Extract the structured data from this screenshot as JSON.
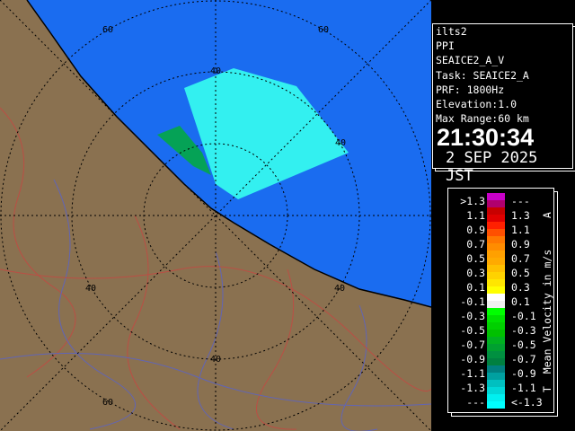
{
  "info": {
    "station": "ilts2",
    "mode": "PPI",
    "product": "SEAICE2_A_V",
    "task": "Task: SEAICE2_A",
    "prf": "PRF: 1800Hz",
    "elevation": "Elevation:1.0",
    "max_range": "Max Range:60 km",
    "time": "21:30:34",
    "date": "2 SEP 2025 JST"
  },
  "map": {
    "range_labels": [
      "60",
      "60",
      "40",
      "40",
      "40",
      "40",
      "40",
      "60"
    ],
    "colors": {
      "sea": "#1a6cf0",
      "land": "#8a7150",
      "echo": "#33f0f0",
      "ring": "#000000"
    }
  },
  "legend": {
    "title": "Mean Velocity in m/s",
    "top_mark": "A",
    "bottom_mark": "T",
    "rows": [
      {
        "low": ">1.3",
        "high": "---",
        "c1": "#c800c8",
        "c2": "#b0006e"
      },
      {
        "low": "1.1",
        "high": "1.3",
        "c1": "#c80000",
        "c2": "#e00000"
      },
      {
        "low": "0.9",
        "high": "1.1",
        "c1": "#ff2000",
        "c2": "#ff5000"
      },
      {
        "low": "0.7",
        "high": "0.9",
        "c1": "#ff7800",
        "c2": "#ff8c00"
      },
      {
        "low": "0.5",
        "high": "0.7",
        "c1": "#ffa000",
        "c2": "#ffaa00"
      },
      {
        "low": "0.3",
        "high": "0.5",
        "c1": "#ffc000",
        "c2": "#ffd200"
      },
      {
        "low": "0.1",
        "high": "0.3",
        "c1": "#ffe600",
        "c2": "#ffff00"
      },
      {
        "low": "-0.1",
        "high": "0.1",
        "c1": "#ffffff",
        "c2": "#f0f0f0"
      },
      {
        "low": "-0.3",
        "high": "-0.1",
        "c1": "#00ff00",
        "c2": "#00e000"
      },
      {
        "low": "-0.5",
        "high": "-0.3",
        "c1": "#00d000",
        "c2": "#00c000"
      },
      {
        "low": "-0.7",
        "high": "-0.5",
        "c1": "#00b020",
        "c2": "#00a030"
      },
      {
        "low": "-0.9",
        "high": "-0.7",
        "c1": "#009040",
        "c2": "#008040"
      },
      {
        "low": "-1.1",
        "high": "-0.9",
        "c1": "#008080",
        "c2": "#00a0a0"
      },
      {
        "low": "-1.3",
        "high": "-1.1",
        "c1": "#00c0c0",
        "c2": "#00d8d8"
      },
      {
        "low": "---",
        "high": "<-1.3",
        "c1": "#00f0f0",
        "c2": "#00ffff"
      }
    ]
  }
}
